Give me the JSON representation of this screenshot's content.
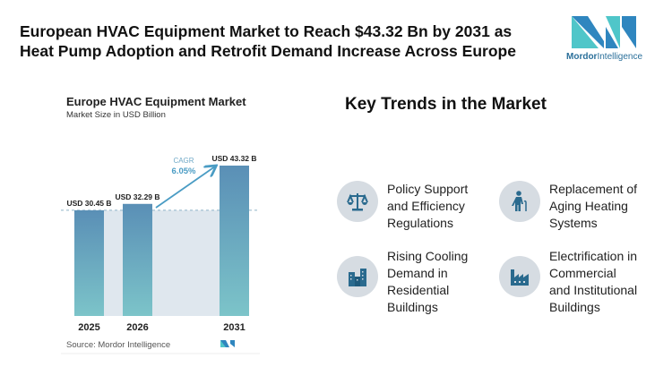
{
  "header": {
    "title_line1": "European HVAC Equipment Market to Reach $43.32 Bn by 2031 as",
    "title_line2": "Heat Pump Adoption and Retrofit Demand Increase Across Europe",
    "logo_text_bold": "Mordor",
    "logo_text": "Intelligence"
  },
  "chart_data": {
    "type": "bar",
    "title": "Europe HVAC Equipment Market",
    "subtitle": "Market Size in USD Billion",
    "categories": [
      "2025",
      "2026",
      "2031"
    ],
    "values": [
      30.45,
      32.29,
      43.32
    ],
    "data_labels": [
      "USD 30.45 B",
      "USD 32.29 B",
      "USD 43.32 B"
    ],
    "annotation": {
      "label": "CAGR",
      "value": "6.05%"
    },
    "source": "Source:  Mordor Intelligence",
    "colors": {
      "bar_top": "#5a8fb6",
      "bar_bottom": "#7cc4c9",
      "shade": "#dfe7ee",
      "cagr": "#4a9cc4"
    }
  },
  "key_trends": {
    "title": "Key Trends in the Market",
    "items": [
      {
        "lines": [
          "Policy Support",
          "and Efficiency",
          "Regulations"
        ],
        "icon": "scales-icon"
      },
      {
        "lines": [
          "Replacement of",
          "Aging Heating",
          "Systems"
        ],
        "icon": "elderly-person-icon"
      },
      {
        "lines": [
          "Rising Cooling",
          "Demand in",
          "Residential",
          "Buildings"
        ],
        "icon": "buildings-icon"
      },
      {
        "lines": [
          "Electrification in",
          "Commercial",
          "and Institutional",
          "Buildings"
        ],
        "icon": "factory-icon"
      }
    ]
  }
}
